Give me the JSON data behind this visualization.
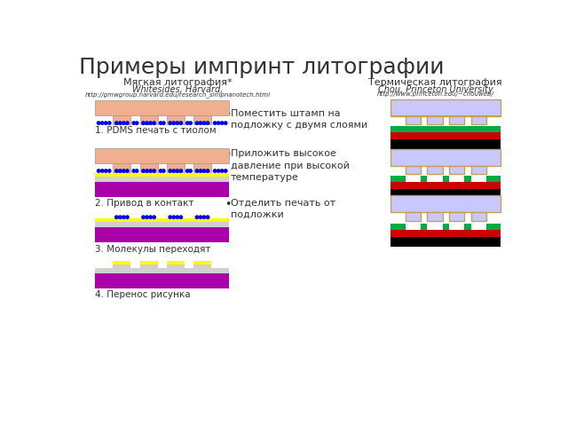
{
  "title": "Примеры импринт литографии",
  "title_fontsize": 18,
  "background_color": "#ffffff",
  "left_header1": "Мягкая литография*",
  "left_header2": "Whitesides, Harvard,",
  "left_header3": "http://gmwgroup.harvard.edu/research_simpnanotech.html",
  "right_header1": "Термическая литография",
  "right_header2": "Chou, Princeton University",
  "right_header3": "http://www.princeton.edu/~chouweb/",
  "step1_label": "1. PDMS печать с тиолом",
  "step2_label": "2. Привод в контакт",
  "step3_label": "3. Молекулы переходят",
  "step4_label": "4. Перенос рисунка",
  "bullet1": "Поместить штамп на\nподложку с двумя слоями",
  "bullet2": "Приложить высокое\nдавление при высокой\nтемпературе",
  "bullet3": "Отделить печать от\nподложки",
  "pdms_color": "#f0b090",
  "dots_color": "#0000ee",
  "yellow_color": "#ffff00",
  "gray_color": "#d0d0d0",
  "purple_color": "#aa00aa",
  "light_purple_color": "#c8c8ff",
  "tan_color": "#c8a050",
  "green_color": "#00aa44",
  "red_color": "#cc0000",
  "black_color": "#000000",
  "text_color": "#333333"
}
